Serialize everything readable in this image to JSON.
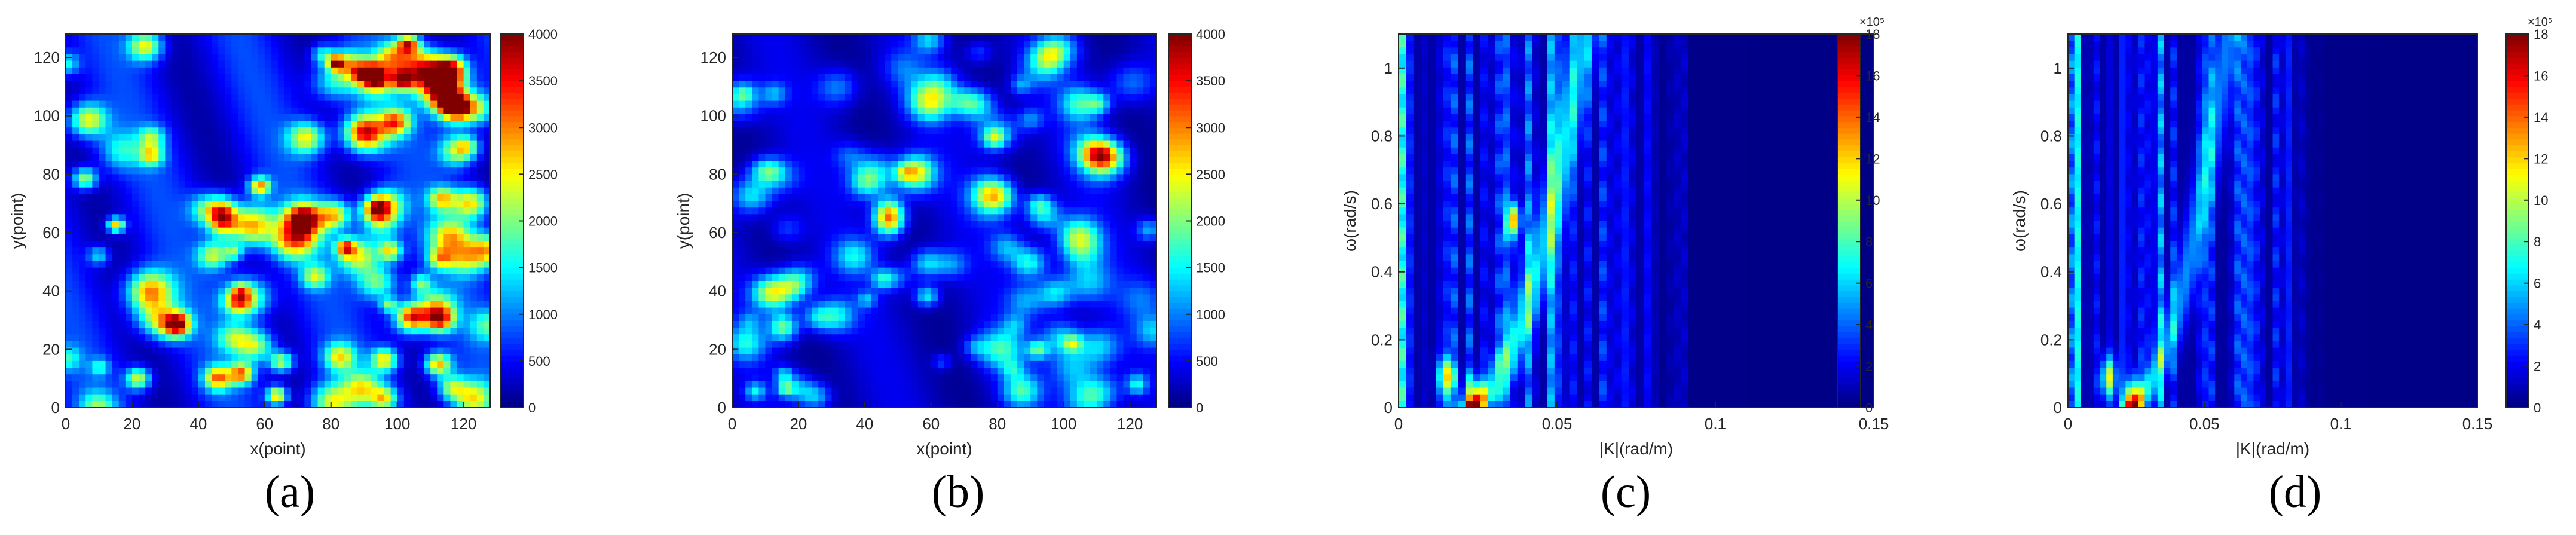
{
  "colors": {
    "jet": [
      "#00008f",
      "#0000ff",
      "#0080ff",
      "#00ffff",
      "#80ff80",
      "#ffff00",
      "#ff8000",
      "#ff0000",
      "#800000"
    ]
  },
  "chart_data": [
    {
      "id": "a",
      "panel_label": "(a)",
      "type": "heatmap",
      "xlabel": "x(point)",
      "ylabel": "y(point)",
      "xlim": [
        0,
        128
      ],
      "ylim": [
        0,
        128
      ],
      "xticks": [
        "0",
        "20",
        "40",
        "60",
        "80",
        "100",
        "120"
      ],
      "yticks": [
        "0",
        "20",
        "40",
        "60",
        "80",
        "100",
        "120"
      ],
      "colorbar": {
        "range": [
          0,
          4000
        ],
        "ticks": [
          "0",
          "500",
          "1000",
          "1500",
          "2000",
          "2500",
          "3000",
          "3500",
          "4000"
        ],
        "exponent": ""
      }
    },
    {
      "id": "b",
      "panel_label": "(b)",
      "type": "heatmap",
      "xlabel": "x(point)",
      "ylabel": "y(point)",
      "xlim": [
        0,
        128
      ],
      "ylim": [
        0,
        128
      ],
      "xticks": [
        "0",
        "20",
        "40",
        "60",
        "80",
        "100",
        "120"
      ],
      "yticks": [
        "0",
        "20",
        "40",
        "60",
        "80",
        "100",
        "120"
      ],
      "colorbar": {
        "range": [
          0,
          4000
        ],
        "ticks": [
          "0",
          "500",
          "1000",
          "1500",
          "2000",
          "2500",
          "3000",
          "3500",
          "4000"
        ],
        "exponent": ""
      }
    },
    {
      "id": "c",
      "panel_label": "(c)",
      "type": "heatmap",
      "xlabel": "|K|(rad/m)",
      "ylabel": "ω(rad/s)",
      "xlim": [
        0,
        0.15
      ],
      "ylim": [
        0,
        1.1
      ],
      "xticks": [
        "0",
        "0.05",
        "0.1",
        "0.15"
      ],
      "yticks": [
        "0",
        "0.2",
        "0.4",
        "0.6",
        "0.8",
        "1"
      ],
      "colorbar": {
        "range": [
          0,
          18
        ],
        "ticks": [
          "0",
          "2",
          "4",
          "6",
          "8",
          "10",
          "12",
          "14",
          "16",
          "18"
        ],
        "exponent": "×10⁵"
      }
    },
    {
      "id": "d",
      "panel_label": "(d)",
      "type": "heatmap",
      "xlabel": "|K|(rad/m)",
      "ylabel": "ω(rad/s)",
      "xlim": [
        0,
        0.15
      ],
      "ylim": [
        0,
        1.1
      ],
      "xticks": [
        "0",
        "0.05",
        "0.1",
        "0.15"
      ],
      "yticks": [
        "0",
        "0.2",
        "0.4",
        "0.6",
        "0.8",
        "1"
      ],
      "colorbar": {
        "range": [
          0,
          18
        ],
        "ticks": [
          "0",
          "2",
          "4",
          "6",
          "8",
          "10",
          "12",
          "14",
          "16",
          "18"
        ],
        "exponent": "×10⁵"
      }
    }
  ]
}
